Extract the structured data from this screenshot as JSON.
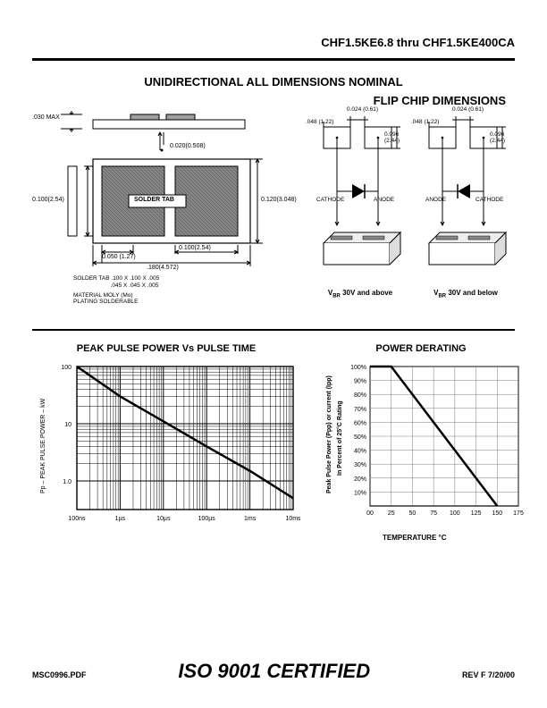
{
  "header": {
    "title": "CHF1.5KE6.8 thru CHF1.5KE400CA"
  },
  "section1": {
    "title_center": "UNIDIRECTIONAL ALL DIMENSIONS NOMINAL",
    "title_right": "FLIP CHIP DIMENSIONS"
  },
  "solder": {
    "dim_top": ".030 MAX",
    "dim_mid": "0.020(0.508)",
    "dim_left": "0.100(2.54)",
    "dim_right": "0.120(3.048)",
    "label_tab": "SOLDER TAB",
    "dim_bot1": "0.050 (1.27)",
    "dim_bot2": "0.100(2.54)",
    "dim_bot3": ".180(4.572)",
    "note1": "SOLDER TAB .100 X .100 X .005",
    "note1b": "                       .045 X .045 X .005",
    "note2": "MATERIAL MOLY (Mo)",
    "note3": "PLATING SOLDERABLE",
    "hatched_fill": "#6b6b6b",
    "bg": "#ffffff"
  },
  "flip": {
    "dim_top_a": "0.024 (0.61)",
    "dim_top_b": ".048 (1.22)",
    "dim_top_c": "0.096 (2.44)",
    "cathode": "CATHODE",
    "anode": "ANODE",
    "caption_above": "VBR 30V and above",
    "caption_below": "VBR 30V and below"
  },
  "chart1": {
    "title": "PEAK PULSE POWER Vs PULSE TIME",
    "type": "line",
    "ylabel": "Pp – PEAK PULSE POWER – kW",
    "xticks": [
      "100ns",
      "1µs",
      "10µs",
      "100µs",
      "1ms",
      "10ms"
    ],
    "yticks": [
      "100",
      "10",
      "1.0"
    ],
    "xlog": true,
    "ylog": true,
    "grid_color": "#000000",
    "line_color": "#000000",
    "line_width": 2.5,
    "background_color": "#ffffff",
    "label_fontsize": 7,
    "data": [
      {
        "x": 0,
        "y": 100
      },
      {
        "x": 1,
        "y": 30
      },
      {
        "x": 2,
        "y": 11
      },
      {
        "x": 3,
        "y": 4
      },
      {
        "x": 4,
        "y": 1.5
      },
      {
        "x": 5,
        "y": 0.5
      }
    ]
  },
  "chart2": {
    "title": "POWER DERATING",
    "type": "line",
    "ylabel": "Peak Pulse Power (Ppp) or current (Ipp) In Percent of 25°C Rating",
    "xlabel": "TEMPERATURE °C",
    "xticks": [
      "00",
      "25",
      "50",
      "75",
      "100",
      "125",
      "150",
      "175"
    ],
    "yticks": [
      "100%",
      "90%",
      "80%",
      "70%",
      "60%",
      "50%",
      "40%",
      "30%",
      "20%",
      "10%"
    ],
    "xlim": [
      0,
      175
    ],
    "ylim": [
      0,
      100
    ],
    "grid_color": "#7a7a7a",
    "line_color": "#000000",
    "line_width": 2.5,
    "background_color": "#ffffff",
    "label_fontsize": 7,
    "data": [
      {
        "x": 0,
        "y": 100
      },
      {
        "x": 25,
        "y": 100
      },
      {
        "x": 150,
        "y": 0
      }
    ]
  },
  "footer": {
    "left": "MSC0996.PDF",
    "center": "ISO 9001 CERTIFIED",
    "right": "REV F 7/20/00"
  }
}
